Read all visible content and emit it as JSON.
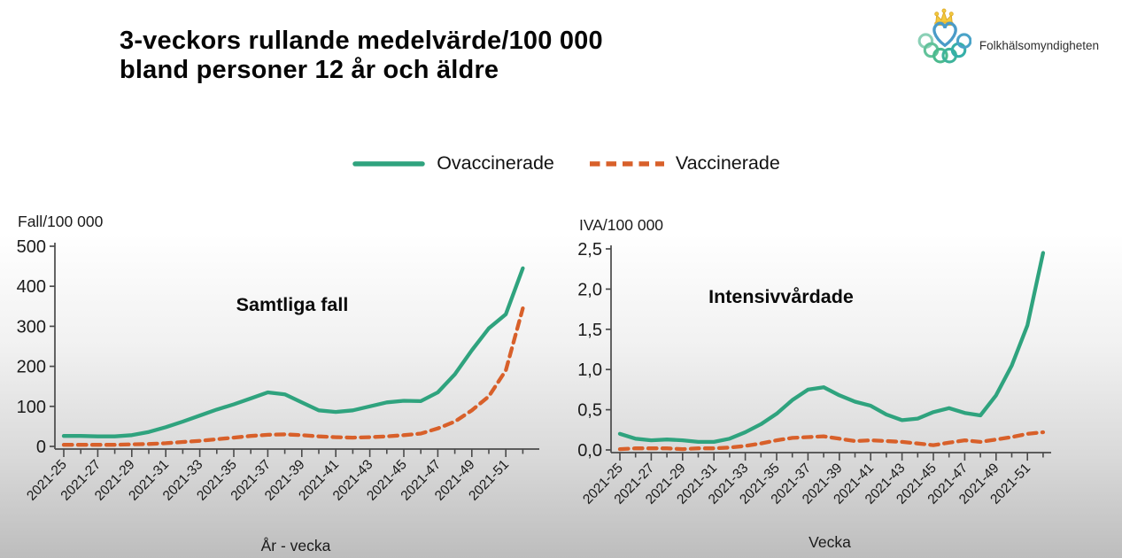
{
  "header": {
    "title_line1": "3-veckors rullande medelvärde/100 000",
    "title_line2": "bland personer 12 år och äldre",
    "logo_text": "Folkhälsomyndigheten"
  },
  "legend": {
    "items": [
      {
        "label": "Ovaccinerade",
        "color": "#2fa37e",
        "style": "solid"
      },
      {
        "label": "Vaccinerade",
        "color": "#d8602a",
        "style": "dashed"
      }
    ]
  },
  "chart_data": [
    {
      "name": "samtliga-fall",
      "type": "line",
      "title": "Samtliga fall",
      "ylabel": "Fall/100 000",
      "xlabel": "År - vecka",
      "ylim": [
        0,
        500
      ],
      "grid": false,
      "legend_position": "top-center-shared",
      "yticks": [
        0,
        100,
        200,
        300,
        400,
        500
      ],
      "ytick_labels": [
        "0",
        "100",
        "200",
        "300",
        "400",
        "500"
      ],
      "x": [
        25,
        26,
        27,
        28,
        29,
        30,
        31,
        32,
        33,
        34,
        35,
        36,
        37,
        38,
        39,
        40,
        41,
        42,
        43,
        44,
        45,
        46,
        47,
        48,
        49,
        50,
        51,
        52
      ],
      "x_tick_labels": [
        "2021-25",
        "2021-27",
        "2021-29",
        "2021-31",
        "2021-33",
        "2021-35",
        "2021-37",
        "2021-39",
        "2021-41",
        "2021-43",
        "2021-45",
        "2021-47",
        "2021-49",
        "2021-51"
      ],
      "series": [
        {
          "name": "Ovaccinerade",
          "color": "#2fa37e",
          "dash": false,
          "values": [
            26,
            26,
            25,
            25,
            28,
            36,
            48,
            62,
            77,
            92,
            105,
            120,
            135,
            130,
            110,
            90,
            86,
            90,
            100,
            110,
            114,
            113,
            135,
            180,
            240,
            295,
            330,
            445
          ]
        },
        {
          "name": "Vaccinerade",
          "color": "#d8602a",
          "dash": true,
          "values": [
            4,
            4,
            4,
            4,
            5,
            6,
            8,
            11,
            14,
            18,
            22,
            26,
            29,
            30,
            28,
            25,
            23,
            22,
            23,
            25,
            28,
            32,
            45,
            62,
            90,
            125,
            190,
            345
          ]
        }
      ]
    },
    {
      "name": "intensivvardade",
      "type": "line",
      "title": "Intensivvårdade",
      "ylabel": "IVA/100 000",
      "xlabel": "Vecka",
      "ylim": [
        0,
        2.5
      ],
      "grid": false,
      "legend_position": "top-center-shared",
      "yticks": [
        0,
        0.5,
        1.0,
        1.5,
        2.0,
        2.5
      ],
      "ytick_labels": [
        "0,0",
        "0,5",
        "1,0",
        "1,5",
        "2,0",
        "2,5"
      ],
      "x": [
        25,
        26,
        27,
        28,
        29,
        30,
        31,
        32,
        33,
        34,
        35,
        36,
        37,
        38,
        39,
        40,
        41,
        42,
        43,
        44,
        45,
        46,
        47,
        48,
        49,
        50,
        51,
        52
      ],
      "x_tick_labels": [
        "2021-25",
        "2021-27",
        "2021-29",
        "2021-31",
        "2021-33",
        "2021-35",
        "2021-37",
        "2021-39",
        "2021-41",
        "2021-43",
        "2021-45",
        "2021-47",
        "2021-49",
        "2021-51"
      ],
      "series": [
        {
          "name": "Ovaccinerade",
          "color": "#2fa37e",
          "dash": false,
          "values": [
            0.2,
            0.14,
            0.12,
            0.13,
            0.12,
            0.1,
            0.1,
            0.14,
            0.22,
            0.32,
            0.45,
            0.62,
            0.75,
            0.78,
            0.68,
            0.6,
            0.55,
            0.44,
            0.37,
            0.39,
            0.47,
            0.52,
            0.46,
            0.43,
            0.68,
            1.05,
            1.55,
            2.45
          ]
        },
        {
          "name": "Vaccinerade",
          "color": "#d8602a",
          "dash": true,
          "values": [
            0.01,
            0.02,
            0.02,
            0.02,
            0.01,
            0.02,
            0.02,
            0.03,
            0.05,
            0.08,
            0.12,
            0.15,
            0.16,
            0.17,
            0.14,
            0.11,
            0.12,
            0.11,
            0.1,
            0.08,
            0.06,
            0.09,
            0.12,
            0.1,
            0.13,
            0.16,
            0.2,
            0.22
          ]
        }
      ]
    }
  ]
}
